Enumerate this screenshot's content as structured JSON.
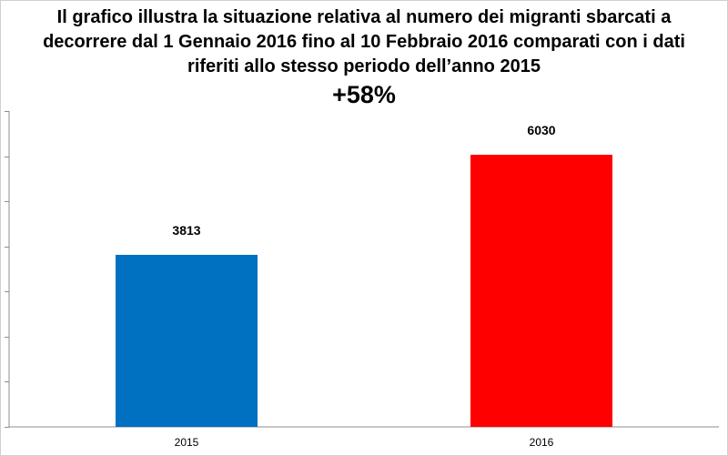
{
  "chart_data": {
    "type": "bar",
    "title": "Il grafico illustra la situazione relativa al numero dei migranti sbarcati a decorrere dal 1 Gennaio 2016 fino al 10 Febbraio 2016  comparati con i dati riferiti allo stesso periodo dell’anno 2015",
    "subtitle": "+58%",
    "categories": [
      "2015",
      "2016"
    ],
    "values": [
      3813,
      6030
    ],
    "colors": [
      "#0070c0",
      "#ff0000"
    ],
    "ylim": [
      0,
      7000
    ],
    "y_axis_tick_labels_visible": false,
    "grid": false,
    "legend": "none"
  }
}
